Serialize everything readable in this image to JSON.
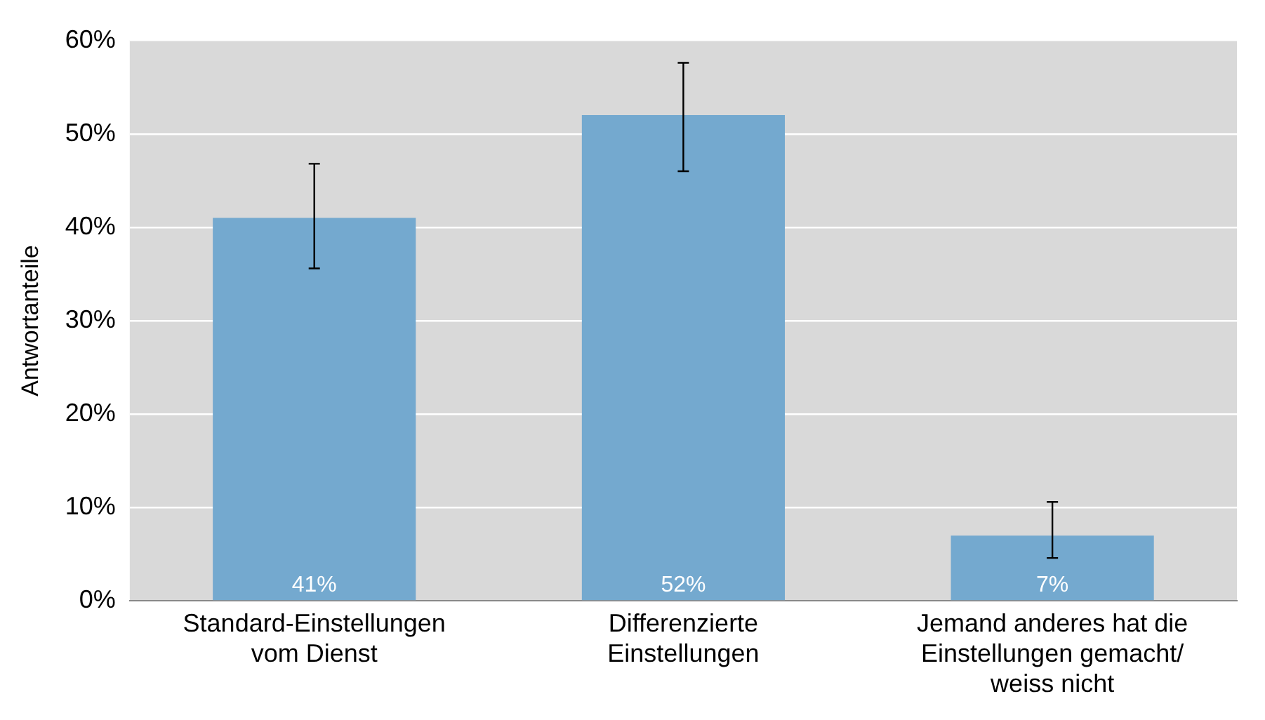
{
  "chart_data": {
    "type": "bar",
    "ylabel": "Antwortanteile",
    "categories": [
      "Standard-Einstellungen vom Dienst",
      "Differenzierte Einstellungen",
      "Jemand anderes hat die Einstellungen gemacht/ weiss nicht"
    ],
    "values": [
      41,
      52,
      7
    ],
    "color": "#74a9cf",
    "errors": [
      [
        35.6,
        46.8
      ],
      [
        46,
        57.6
      ],
      [
        4.6,
        10.6
      ]
    ],
    "value_labels": [
      "41%",
      "52%",
      "7%"
    ],
    "ylim": [
      0,
      60
    ],
    "yticks": [
      {
        "value": 0,
        "label": "0%"
      },
      {
        "value": 10,
        "label": "10%"
      },
      {
        "value": 20,
        "label": "20%"
      },
      {
        "value": 30,
        "label": "30%"
      },
      {
        "value": 40,
        "label": "40%"
      },
      {
        "value": 50,
        "label": "50%"
      },
      {
        "value": 60,
        "label": "60%"
      }
    ],
    "grid": "y",
    "legend": false
  }
}
